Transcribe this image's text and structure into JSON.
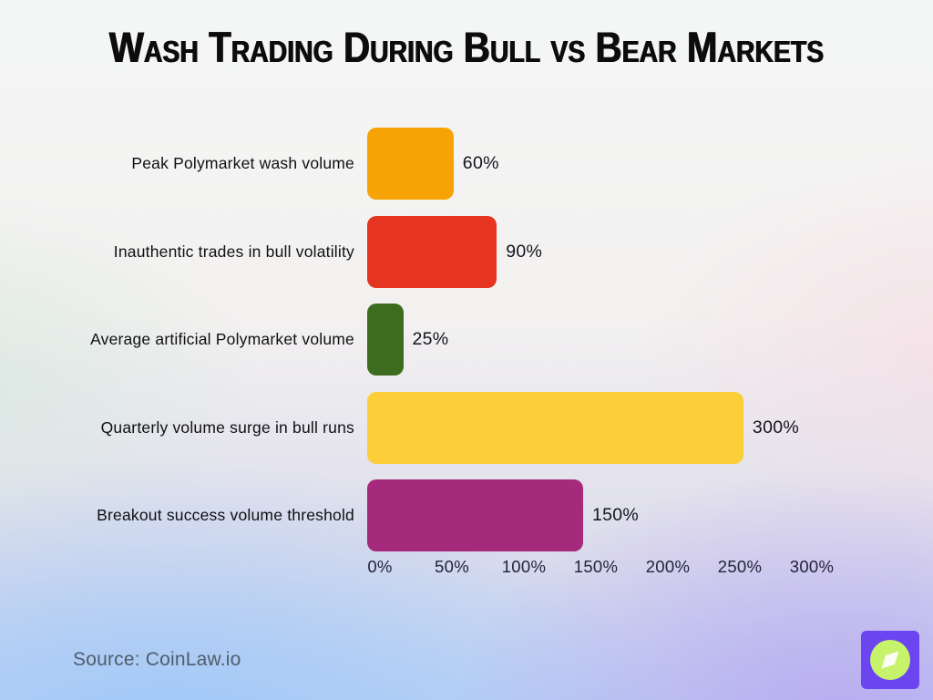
{
  "title": "Wash Trading During Bull vs Bear Markets",
  "source": "Source: CoinLaw.io",
  "logo": {
    "name": "coinlaw-compass-logo",
    "bg_color": "#6B46F0",
    "circle_color": "#C6F36A",
    "needle_color": "#FAFDF2"
  },
  "chart_data": {
    "type": "bar",
    "orientation": "horizontal",
    "title": "Wash Trading During Bull vs Bear Markets",
    "categories": [
      "Peak Polymarket wash volume",
      "Inauthentic trades in bull volatility",
      "Average artificial Polymarket volume",
      "Quarterly volume surge in bull runs",
      "Breakout success volume threshold"
    ],
    "values": [
      60,
      90,
      25,
      300,
      150
    ],
    "value_labels": [
      "60%",
      "90%",
      "25%",
      "300%",
      "150%"
    ],
    "bar_colors": [
      "#F7A305",
      "#E5341F",
      "#3E6C1E",
      "#FCCE38",
      "#A62A7C"
    ],
    "xlabel": "",
    "ylabel": "",
    "xlim": [
      0,
      300
    ],
    "x_ticks": [
      "0%",
      "50%",
      "100%",
      "150%",
      "200%",
      "250%",
      "300%"
    ],
    "x_tick_values": [
      0,
      50,
      100,
      150,
      200,
      250,
      300
    ],
    "grid": false,
    "legend": false
  }
}
